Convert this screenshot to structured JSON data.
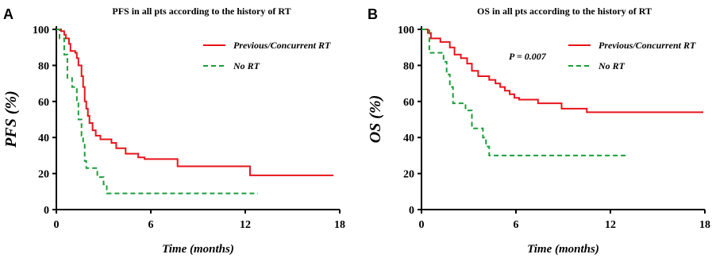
{
  "chart_data": [
    {
      "type": "line",
      "panel_label": "A",
      "title": "PFS in all pts according to the history of RT",
      "xlabel": "Time (months)",
      "ylabel": "PFS (%)",
      "xlim": [
        0,
        18
      ],
      "ylim": [
        0,
        100
      ],
      "xticks": [
        0,
        6,
        12,
        18
      ],
      "yticks": [
        0,
        20,
        40,
        60,
        80,
        100
      ],
      "legend_position": "top-right",
      "annotation": "",
      "series": [
        {
          "name": "Previous/Concurrent RT",
          "color": "#e8141b",
          "dash": "solid",
          "step_points": [
            [
              0,
              100
            ],
            [
              0.3,
              99
            ],
            [
              0.5,
              97
            ],
            [
              0.6,
              95
            ],
            [
              0.8,
              92
            ],
            [
              0.9,
              88
            ],
            [
              1.2,
              87
            ],
            [
              1.3,
              84
            ],
            [
              1.4,
              80
            ],
            [
              1.6,
              74
            ],
            [
              1.7,
              68
            ],
            [
              1.8,
              60
            ],
            [
              1.9,
              56
            ],
            [
              2.0,
              52
            ],
            [
              2.1,
              48
            ],
            [
              2.3,
              44
            ],
            [
              2.5,
              41
            ],
            [
              2.8,
              39
            ],
            [
              3.5,
              37
            ],
            [
              3.8,
              34
            ],
            [
              4.4,
              31
            ],
            [
              5.2,
              29
            ],
            [
              5.6,
              28
            ],
            [
              7.7,
              24
            ],
            [
              12.3,
              19
            ],
            [
              17.6,
              19
            ]
          ]
        },
        {
          "name": "No RT",
          "color": "#1a9e3a",
          "dash": "dashed",
          "step_points": [
            [
              0,
              100
            ],
            [
              0.2,
              95
            ],
            [
              0.5,
              86
            ],
            [
              0.7,
              73
            ],
            [
              1.0,
              68
            ],
            [
              1.3,
              59
            ],
            [
              1.4,
              50
            ],
            [
              1.6,
              41
            ],
            [
              1.7,
              36
            ],
            [
              1.8,
              27
            ],
            [
              1.9,
              23
            ],
            [
              2.6,
              18
            ],
            [
              3.0,
              14
            ],
            [
              3.2,
              9
            ],
            [
              12.8,
              9
            ]
          ]
        }
      ]
    },
    {
      "type": "line",
      "panel_label": "B",
      "title": "OS in all pts according to the history of RT",
      "xlabel": "Time (months)",
      "ylabel": "OS (%)",
      "xlim": [
        0,
        18
      ],
      "ylim": [
        0,
        100
      ],
      "xticks": [
        0,
        6,
        12,
        18
      ],
      "yticks": [
        0,
        20,
        40,
        60,
        80,
        100
      ],
      "legend_position": "top-right",
      "annotation": "P = 0.007",
      "series": [
        {
          "name": "Previous/Concurrent RT",
          "color": "#e8141b",
          "dash": "solid",
          "step_points": [
            [
              0,
              100
            ],
            [
              0.4,
              98
            ],
            [
              0.6,
              95
            ],
            [
              1.2,
              93
            ],
            [
              1.8,
              90
            ],
            [
              2.1,
              86
            ],
            [
              2.5,
              84
            ],
            [
              2.9,
              81
            ],
            [
              3.2,
              77
            ],
            [
              3.6,
              74
            ],
            [
              4.3,
              72
            ],
            [
              4.7,
              70
            ],
            [
              5.0,
              68
            ],
            [
              5.3,
              66
            ],
            [
              5.6,
              64
            ],
            [
              5.9,
              62
            ],
            [
              6.2,
              61
            ],
            [
              7.4,
              59
            ],
            [
              8.9,
              56
            ],
            [
              10.5,
              54
            ],
            [
              17.9,
              54
            ]
          ]
        },
        {
          "name": "No RT",
          "color": "#1a9e3a",
          "dash": "dashed",
          "step_points": [
            [
              0,
              100
            ],
            [
              0.5,
              87
            ],
            [
              1.4,
              82
            ],
            [
              1.6,
              75
            ],
            [
              1.8,
              68
            ],
            [
              2.0,
              59
            ],
            [
              2.8,
              55
            ],
            [
              3.2,
              45
            ],
            [
              3.9,
              40
            ],
            [
              4.1,
              35
            ],
            [
              4.3,
              30
            ],
            [
              13.1,
              30
            ]
          ]
        }
      ]
    }
  ]
}
